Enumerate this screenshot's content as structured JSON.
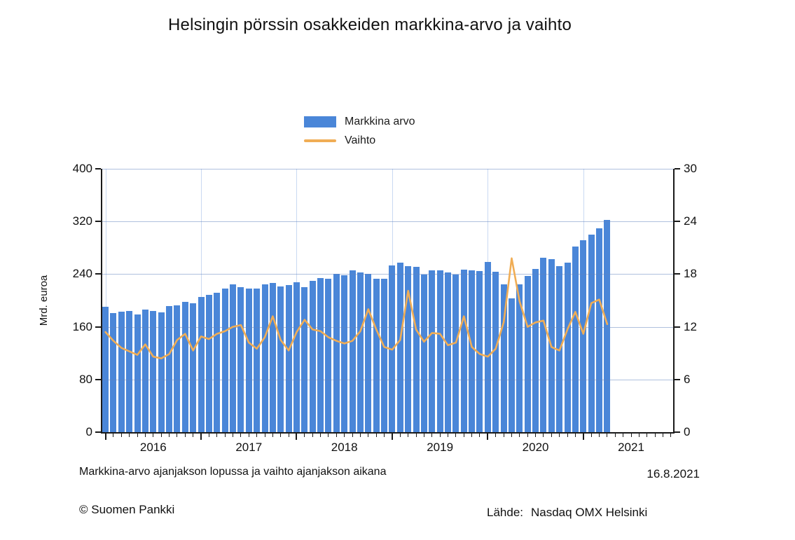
{
  "title": "Helsingin pörssin osakkeiden markkina-arvo ja vaihto",
  "legend": {
    "items": [
      {
        "label": "Markkina arvo",
        "type": "bar",
        "color": "#4a86d8"
      },
      {
        "label": "Vaihto",
        "type": "line",
        "color": "#f0ad55"
      }
    ]
  },
  "left_axis": {
    "label": "Mrd. euroa",
    "ticks": [
      0,
      80,
      160,
      240,
      320,
      400
    ],
    "range": [
      0,
      400
    ]
  },
  "right_axis": {
    "ticks": [
      0,
      6,
      12,
      18,
      24,
      30
    ],
    "range": [
      0,
      30
    ]
  },
  "x_axis": {
    "year_labels": [
      "2016",
      "2017",
      "2018",
      "2019",
      "2020",
      "2021"
    ]
  },
  "footnote": "Markkina-arvo ajanjakson lopussa ja vaihto ajanjakson aikana",
  "report_date": "16.8.2021",
  "copyright": "© Suomen Pankki",
  "source_label": "Lähde:",
  "source_name": "Nasdaq OMX Helsinki",
  "colors": {
    "bar": "#4a86d8",
    "line": "#f0ad55",
    "grid": "#c9d9f2",
    "axis": "#1a1a1a"
  },
  "chart_data": {
    "type": "bar+line",
    "title": "Helsingin pörssin osakkeiden markkina-arvo ja vaihto",
    "x_unit": "month",
    "x": [
      "2015-12",
      "2016-01",
      "2016-02",
      "2016-03",
      "2016-04",
      "2016-05",
      "2016-06",
      "2016-07",
      "2016-08",
      "2016-09",
      "2016-10",
      "2016-11",
      "2016-12",
      "2017-01",
      "2017-02",
      "2017-03",
      "2017-04",
      "2017-05",
      "2017-06",
      "2017-07",
      "2017-08",
      "2017-09",
      "2017-10",
      "2017-11",
      "2017-12",
      "2018-01",
      "2018-02",
      "2018-03",
      "2018-04",
      "2018-05",
      "2018-06",
      "2018-07",
      "2018-08",
      "2018-09",
      "2018-10",
      "2018-11",
      "2018-12",
      "2019-01",
      "2019-02",
      "2019-03",
      "2019-04",
      "2019-05",
      "2019-06",
      "2019-07",
      "2019-08",
      "2019-09",
      "2019-10",
      "2019-11",
      "2019-12",
      "2020-01",
      "2020-02",
      "2020-03",
      "2020-04",
      "2020-05",
      "2020-06",
      "2020-07",
      "2020-08",
      "2020-09",
      "2020-10",
      "2020-11",
      "2020-12",
      "2021-01",
      "2021-02",
      "2021-03"
    ],
    "series": [
      {
        "name": "Markkina arvo",
        "type": "bar",
        "axis": "left",
        "unit": "Mrd. euroa",
        "color": "#4a86d8",
        "values": [
          190,
          181,
          183,
          184,
          179,
          186,
          184,
          182,
          192,
          193,
          198,
          196,
          205,
          208,
          212,
          218,
          224,
          220,
          218,
          218,
          225,
          227,
          221,
          223,
          228,
          220,
          230,
          234,
          233,
          240,
          238,
          246,
          243,
          240,
          233,
          233,
          253,
          257,
          252,
          251,
          239,
          246,
          246,
          243,
          239,
          247,
          246,
          245,
          258,
          244,
          225,
          203,
          224,
          237,
          248,
          265,
          263,
          252,
          257,
          282,
          291,
          300,
          310,
          322
        ]
      },
      {
        "name": "Vaihto",
        "type": "line",
        "axis": "right",
        "unit": "Mrd. euroa",
        "color": "#f0ad55",
        "values": [
          11.4,
          10.4,
          9.6,
          9.2,
          8.8,
          10.0,
          8.6,
          8.4,
          8.9,
          10.5,
          11.2,
          9.3,
          10.9,
          10.6,
          11.2,
          11.5,
          12.0,
          12.2,
          10.2,
          9.5,
          10.8,
          13.2,
          10.5,
          9.3,
          11.4,
          12.8,
          11.7,
          11.5,
          10.8,
          10.4,
          10.1,
          10.4,
          11.5,
          14.0,
          11.7,
          9.7,
          9.4,
          10.5,
          16.1,
          11.7,
          10.3,
          11.3,
          11.2,
          9.9,
          10.2,
          13.2,
          9.7,
          8.9,
          8.6,
          9.5,
          12.5,
          19.8,
          14.9,
          12.0,
          12.5,
          12.7,
          9.7,
          9.3,
          11.7,
          13.7,
          11.2,
          14.7,
          15.1,
          12.3
        ]
      }
    ],
    "left_ylim": [
      0,
      400
    ],
    "right_ylim": [
      0,
      30
    ],
    "grid": true,
    "legend_position": "top-center"
  }
}
